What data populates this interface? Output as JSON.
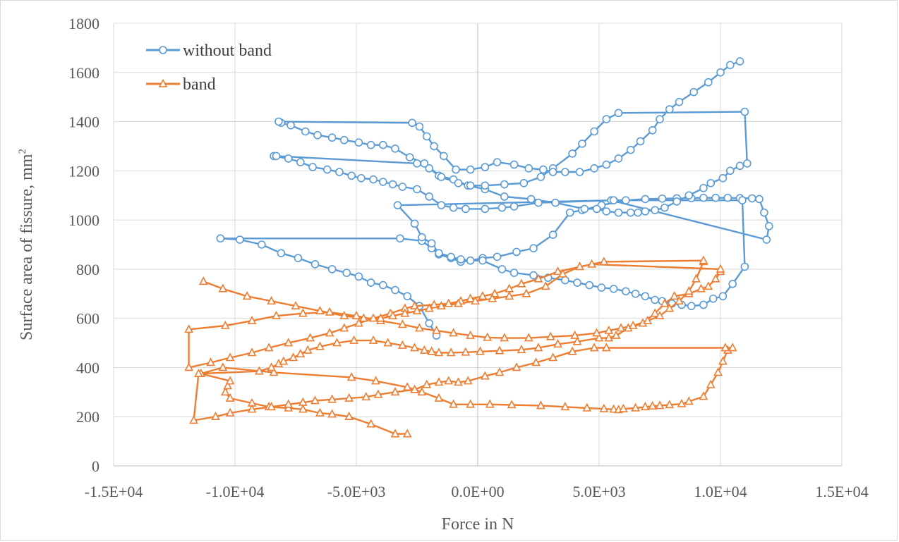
{
  "chart_data": {
    "type": "line",
    "title": "",
    "xlabel": "Force in N",
    "ylabel_text": "Surface  area of fissure, mm",
    "ylabel_sup": "2",
    "xlim": [
      -15000,
      15000
    ],
    "ylim": [
      0,
      1800
    ],
    "xticks": [
      -15000,
      -10000,
      -5000,
      0,
      5000,
      10000,
      15000
    ],
    "xtick_labels": [
      "-1.5E+04",
      "-1.0E+04",
      "-5.0E+03",
      "0.0E+00",
      "5.0E+03",
      "1.0E+04",
      "1.5E+04"
    ],
    "yticks": [
      0,
      200,
      400,
      600,
      800,
      1000,
      1200,
      1400,
      1600,
      1800
    ],
    "ytick_labels": [
      "0",
      "200",
      "400",
      "600",
      "800",
      "1000",
      "1200",
      "1400",
      "1600",
      "1800"
    ],
    "grid": true,
    "legend_position": "top-left",
    "series": [
      {
        "name": "without band",
        "color": "#5b9bd5",
        "marker": "circle",
        "x": [
          -1700,
          -2000,
          -2400,
          -2900,
          -3400,
          -3900,
          -4400,
          -4900,
          -5400,
          -6000,
          -6700,
          -7400,
          -8100,
          -8900,
          -9800,
          -10600,
          -3200,
          -2300,
          -1900,
          -1600,
          -1100,
          -700,
          -300,
          200,
          800,
          1600,
          2300,
          3100,
          3800,
          4300,
          5100,
          6100,
          6900,
          7600,
          8200,
          8800,
          9300,
          9800,
          10300,
          10800,
          11300,
          11600,
          11800,
          12000,
          11900,
          5500,
          -3300,
          -2600,
          -2300,
          -1900,
          -1600,
          -1100,
          -700,
          -300,
          200,
          1000,
          1500,
          2300,
          2900,
          3600,
          4100,
          4600,
          5100,
          5600,
          6100,
          6500,
          6900,
          7300,
          7600,
          8000,
          8400,
          8800,
          9300,
          9700,
          10100,
          10500,
          11000,
          10900,
          5600,
          2500,
          1500,
          1000,
          300,
          -500,
          -1000,
          -1500,
          -2000,
          -2500,
          -3100,
          -3500,
          -3900,
          -4300,
          -4800,
          -5200,
          -5700,
          -6200,
          -6800,
          -7300,
          -7800,
          -8400,
          -8300,
          -2500,
          -2000,
          -1600,
          -1000,
          -400,
          300,
          1100,
          2200,
          3200,
          4400,
          4900,
          5300,
          5800,
          6300,
          6600,
          6900,
          7300,
          7700,
          8200,
          8700,
          9300,
          9600,
          10100,
          10400,
          10800,
          11100,
          11000,
          5800,
          5300,
          4800,
          4300,
          3900,
          3100,
          2600,
          1900,
          1100,
          300,
          -300,
          -800,
          -1500,
          -2200,
          -2800,
          -3400,
          -3900,
          -4400,
          -4900,
          -5500,
          -6000,
          -6600,
          -7100,
          -7700,
          -8100,
          -8200,
          -2700,
          -2400,
          -2100,
          -1800,
          -1400,
          -900,
          -300,
          300,
          800,
          1500,
          2100,
          2700,
          3100,
          3600,
          4200,
          4800,
          5300,
          5800,
          6300,
          6700,
          7200,
          7500,
          7900,
          8300,
          8900,
          9500,
          10000,
          10400,
          10800
        ],
        "y": [
          530,
          580,
          650,
          690,
          715,
          735,
          745,
          770,
          785,
          800,
          820,
          845,
          865,
          900,
          920,
          925,
          925,
          915,
          885,
          860,
          845,
          830,
          835,
          845,
          850,
          870,
          885,
          940,
          1030,
          1040,
          1060,
          1080,
          1085,
          1087,
          1088,
          1089,
          1090,
          1090,
          1090,
          1089,
          1088,
          1085,
          1030,
          975,
          920,
          1080,
          1060,
          985,
          930,
          905,
          865,
          850,
          840,
          835,
          835,
          800,
          785,
          775,
          765,
          755,
          745,
          735,
          725,
          720,
          710,
          700,
          690,
          675,
          670,
          660,
          655,
          650,
          655,
          680,
          690,
          740,
          810,
          1080,
          1080,
          1070,
          1055,
          1050,
          1045,
          1045,
          1050,
          1060,
          1095,
          1125,
          1135,
          1145,
          1155,
          1165,
          1170,
          1180,
          1195,
          1205,
          1215,
          1235,
          1250,
          1260,
          1260,
          1230,
          1210,
          1180,
          1165,
          1140,
          1125,
          1095,
          1085,
          1070,
          1045,
          1045,
          1035,
          1030,
          1030,
          1030,
          1035,
          1040,
          1050,
          1075,
          1100,
          1130,
          1150,
          1170,
          1200,
          1220,
          1230,
          1440,
          1435,
          1410,
          1360,
          1310,
          1270,
          1210,
          1175,
          1150,
          1145,
          1140,
          1140,
          1150,
          1175,
          1230,
          1255,
          1290,
          1305,
          1305,
          1315,
          1325,
          1335,
          1345,
          1360,
          1385,
          1395,
          1400,
          1395,
          1380,
          1340,
          1300,
          1260,
          1205,
          1205,
          1215,
          1235,
          1225,
          1210,
          1205,
          1195,
          1195,
          1195,
          1210,
          1225,
          1250,
          1285,
          1320,
          1365,
          1410,
          1450,
          1480,
          1520,
          1560,
          1600,
          1630,
          1645
        ]
      },
      {
        "name": "band",
        "color": "#ed7d31",
        "marker": "triangle",
        "x": [
          -2900,
          -3400,
          -4400,
          -5300,
          -6000,
          -6500,
          -7200,
          -7800,
          -8600,
          -9300,
          -10200,
          -10400,
          -10300,
          -10200,
          -11400,
          -10500,
          -8400,
          -5200,
          -4200,
          -2900,
          -2300,
          -1600,
          -1000,
          -300,
          500,
          1400,
          2600,
          3600,
          4500,
          5200,
          5600,
          5800,
          6000,
          6500,
          6900,
          7200,
          7500,
          7900,
          8400,
          8700,
          9300,
          9600,
          9900,
          10100,
          10300,
          10500,
          10200,
          5300,
          4800,
          3900,
          3100,
          2400,
          1600,
          900,
          300,
          -400,
          -800,
          -1200,
          -1600,
          -2100,
          -2600,
          -3400,
          -4100,
          -4600,
          -5300,
          -6000,
          -6700,
          -7200,
          -7800,
          -8500,
          -9300,
          -10200,
          -10800,
          -11700,
          -11500,
          -9000,
          -8500,
          -8200,
          -8000,
          -7600,
          -7300,
          -7000,
          -6500,
          -5800,
          -5100,
          -4300,
          -3700,
          -3100,
          -2600,
          -2200,
          -1900,
          -1600,
          -1100,
          -500,
          100,
          900,
          1800,
          2500,
          3300,
          4100,
          5000,
          5400,
          5700,
          6200,
          6800,
          7300,
          7700,
          8100,
          8700,
          9200,
          9500,
          9800,
          10000,
          10000,
          4700,
          3300,
          2500,
          1800,
          1300,
          700,
          200,
          -300,
          -700,
          -1200,
          -1800,
          -2600,
          -3000,
          -3600,
          -4300,
          -4900,
          -5500,
          -6100,
          -6900,
          -7800,
          -8600,
          -9300,
          -10200,
          -11000,
          -11900,
          -11900,
          -10400,
          -9300,
          -8300,
          -7200,
          -6100,
          -5000,
          -4000,
          -3100,
          -2400,
          -1700,
          -1000,
          -300,
          400,
          1100,
          2100,
          3000,
          4000,
          4900,
          5400,
          5900,
          6400,
          7000,
          7500,
          7900,
          8300,
          8700,
          9000,
          9300,
          9300,
          5200,
          4200,
          3500,
          2800,
          2000,
          1300,
          600,
          -100,
          -800,
          -1500,
          -2000,
          -2500,
          -3000,
          -3500,
          -4000,
          -4700,
          -5500,
          -6500,
          -7500,
          -8500,
          -9500,
          -10500,
          -11300
        ],
        "y": [
          130,
          130,
          170,
          200,
          210,
          215,
          230,
          235,
          240,
          255,
          275,
          300,
          325,
          345,
          375,
          400,
          380,
          360,
          345,
          320,
          300,
          275,
          250,
          250,
          250,
          248,
          245,
          240,
          235,
          232,
          230,
          228,
          232,
          235,
          240,
          243,
          245,
          248,
          252,
          262,
          282,
          330,
          380,
          425,
          470,
          480,
          480,
          480,
          480,
          465,
          440,
          420,
          400,
          380,
          365,
          345,
          340,
          345,
          340,
          330,
          310,
          300,
          290,
          280,
          275,
          270,
          265,
          258,
          250,
          240,
          230,
          215,
          200,
          185,
          375,
          385,
          400,
          415,
          425,
          440,
          455,
          470,
          485,
          500,
          510,
          510,
          500,
          490,
          480,
          470,
          465,
          460,
          460,
          462,
          465,
          468,
          472,
          480,
          495,
          505,
          520,
          520,
          530,
          560,
          580,
          620,
          660,
          690,
          700,
          720,
          730,
          760,
          790,
          800,
          820,
          790,
          760,
          740,
          720,
          700,
          690,
          680,
          670,
          660,
          655,
          650,
          640,
          620,
          600,
          580,
          560,
          540,
          520,
          500,
          480,
          460,
          440,
          420,
          400,
          555,
          570,
          590,
          610,
          620,
          625,
          610,
          590,
          575,
          560,
          550,
          540,
          530,
          522,
          520,
          520,
          525,
          530,
          540,
          550,
          560,
          570,
          590,
          610,
          640,
          670,
          710,
          760,
          830,
          835,
          830,
          810,
          780,
          730,
          700,
          690,
          680,
          670,
          660,
          650,
          640,
          630,
          620,
          610,
          600,
          600,
          610,
          630,
          650,
          670,
          690,
          720,
          750
        ]
      }
    ]
  }
}
